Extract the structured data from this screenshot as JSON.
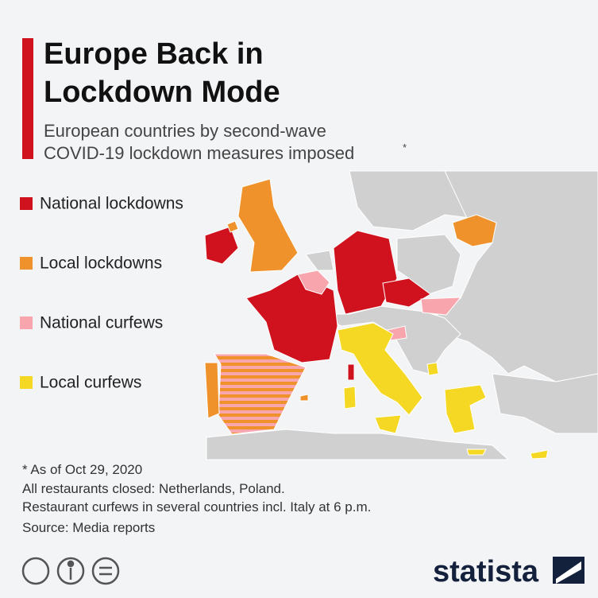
{
  "header": {
    "title_lines": [
      "Europe Back in",
      "Lockdown Mode"
    ],
    "subtitle_lines": [
      "European countries by second-wave",
      "COVID-19 lockdown measures imposed"
    ],
    "subtitle_note": "*"
  },
  "legend": {
    "items": [
      {
        "label": "National lockdowns"
      },
      {
        "label": "Local lockdowns"
      },
      {
        "label": "National curfews"
      },
      {
        "label": "Local curfews"
      }
    ]
  },
  "footnotes": [
    "* As of Oct 29, 2020",
    "All restaurants closed: Netherlands, Poland.",
    "Restaurant curfews in several countries incl. Italy at 6 p.m."
  ],
  "source": "Source: Media reports",
  "brand": "statista"
}
